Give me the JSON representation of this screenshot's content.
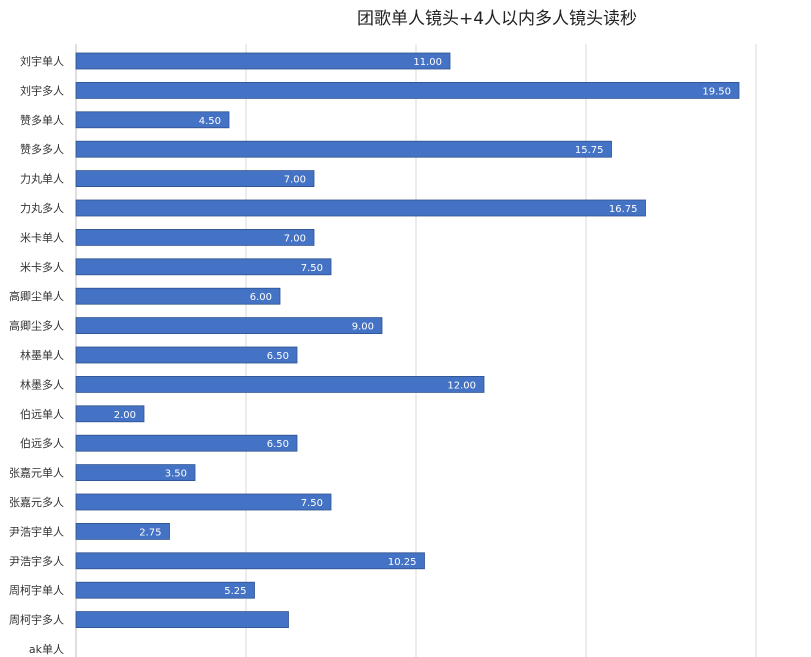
{
  "chart_data": {
    "type": "bar",
    "orientation": "horizontal",
    "title": "团歌单人镜头+4人以内多人镜头读秒",
    "xlabel": "",
    "ylabel": "",
    "categories": [
      "刘宇单人",
      "刘宇多人",
      "赞多单人",
      "赞多多人",
      "力丸单人",
      "力丸多人",
      "米卡单人",
      "米卡多人",
      "高卿尘单人",
      "高卿尘多人",
      "林墨单人",
      "林墨多人",
      "伯远单人",
      "伯远多人",
      "张嘉元单人",
      "张嘉元多人",
      "尹浩宇单人",
      "尹浩宇多人",
      "周柯宇单人",
      "周柯宇多人",
      "ak单人"
    ],
    "values": [
      11.0,
      19.5,
      4.5,
      15.75,
      7.0,
      16.75,
      7.0,
      7.5,
      6.0,
      9.0,
      6.5,
      12.0,
      2.0,
      6.5,
      3.5,
      7.5,
      2.75,
      10.25,
      5.25,
      6.25,
      null
    ],
    "data_labels": [
      "11.00",
      "19.50",
      "4.50",
      "15.75",
      "7.00",
      "16.75",
      "7.00",
      "7.50",
      "6.00",
      "9.00",
      "6.50",
      "12.00",
      "2.00",
      "6.50",
      "3.50",
      "7.50",
      "2.75",
      "10.25",
      "5.25",
      "",
      ""
    ],
    "xlim": [
      0,
      20
    ],
    "grid": true,
    "bar_color": "#4472c4",
    "label_color": "#ffffff"
  }
}
